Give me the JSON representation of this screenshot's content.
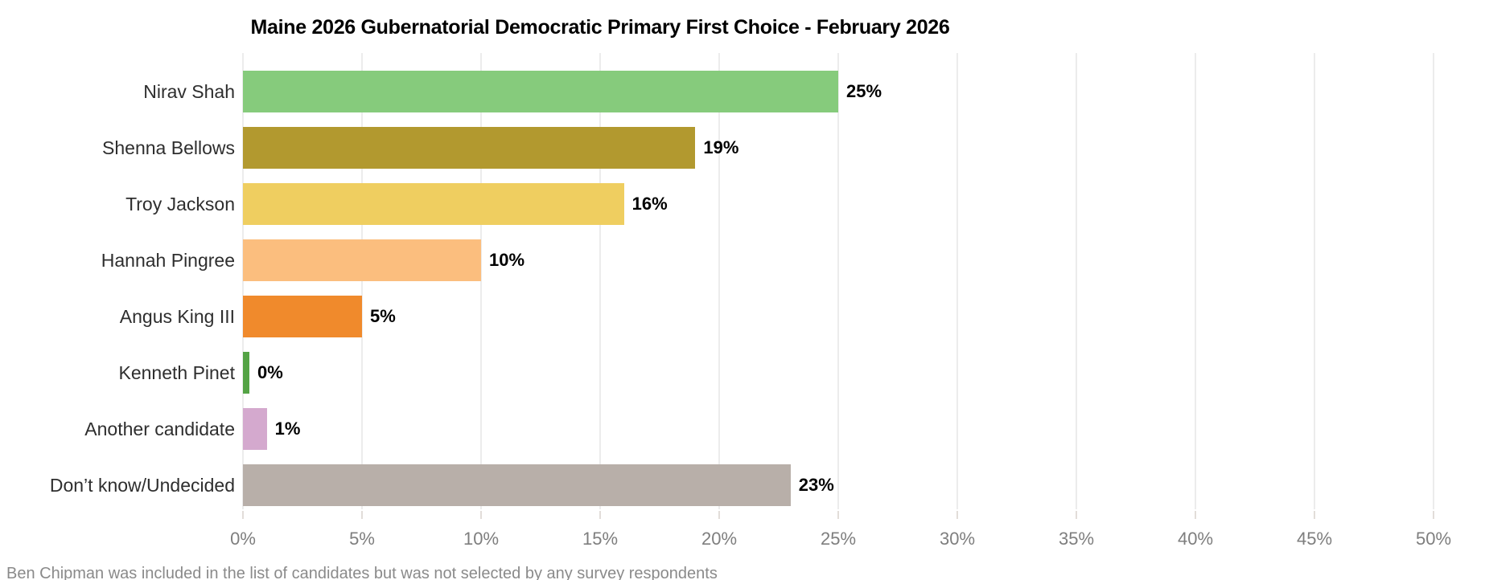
{
  "title": "Maine 2026 Gubernatorial Democratic Primary First Choice - February 2026",
  "footnote": "Ben Chipman was included in the list of candidates but was not selected by any survey respondents",
  "colors": {
    "background": "#ffffff",
    "gridline": "#ececec",
    "axis_tick": "#e2ddd9",
    "axis_label": "#7e7e7e",
    "category_label": "#2e2e2e",
    "value_label": "#000000"
  },
  "chart_data": {
    "type": "bar",
    "orientation": "horizontal",
    "title": "Maine 2026 Gubernatorial Democratic Primary First Choice - February 2026",
    "categories": [
      "Nirav Shah",
      "Shenna Bellows",
      "Troy Jackson",
      "Hannah Pingree",
      "Angus King III",
      "Kenneth Pinet",
      "Another candidate",
      "Don’t know/Undecided"
    ],
    "values": [
      25,
      19,
      16,
      10,
      5,
      0,
      1,
      23
    ],
    "value_labels": [
      "25%",
      "19%",
      "16%",
      "10%",
      "5%",
      "0%",
      "1%",
      "23%"
    ],
    "bar_colors": [
      "#86cb7c",
      "#b2992f",
      "#efce60",
      "#fbbe7e",
      "#f08a2c",
      "#54a345",
      "#d4a9ce",
      "#b8afa9"
    ],
    "xlabel": "",
    "ylabel": "",
    "xlim": [
      0,
      50
    ],
    "x_tick_step": 5,
    "x_ticks": [
      "0%",
      "5%",
      "10%",
      "15%",
      "20%",
      "25%",
      "30%",
      "35%",
      "40%",
      "45%",
      "50%"
    ],
    "grid": "vertical",
    "legend": "none"
  }
}
